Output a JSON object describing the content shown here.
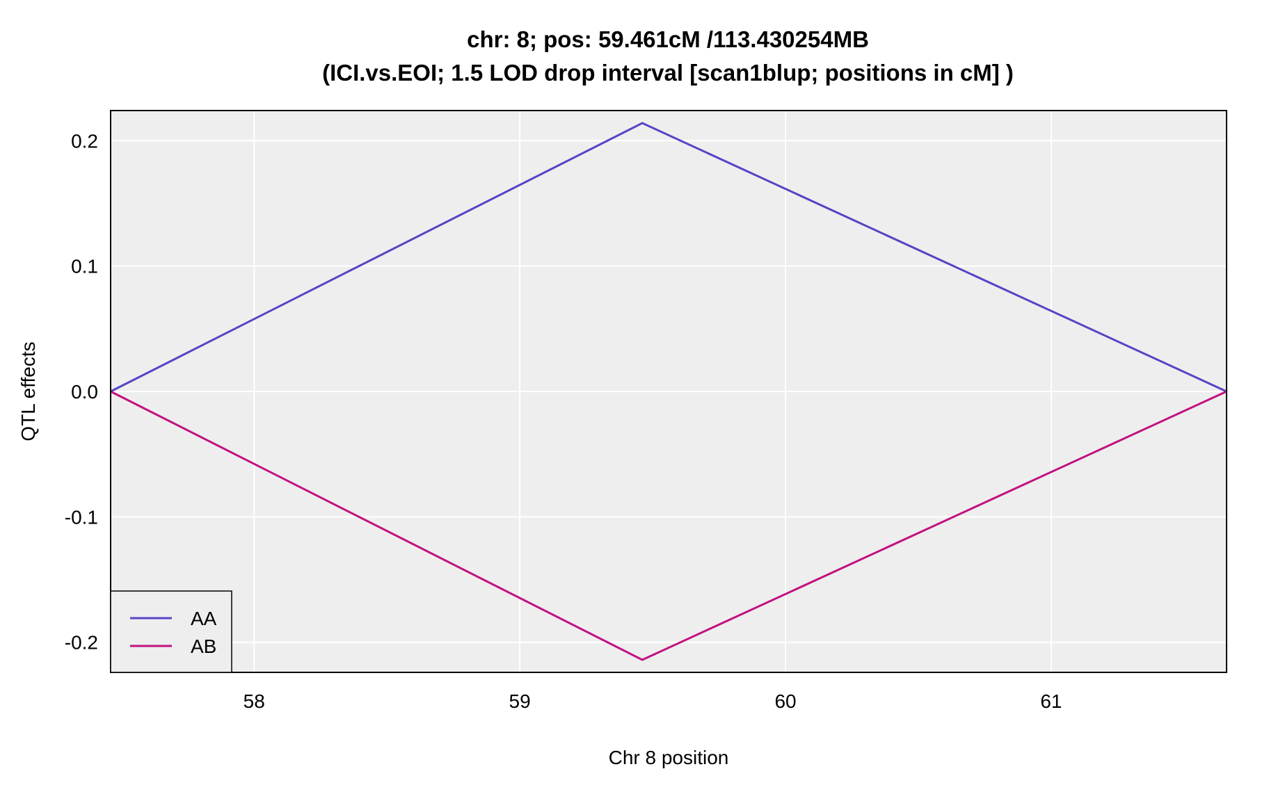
{
  "chart_data": {
    "type": "line",
    "title_line1": "chr: 8; pos: 59.461cM /113.430254MB",
    "title_line2": "(ICI.vs.EOI; 1.5 LOD drop interval [scan1blup; positions in cM] )",
    "xlabel": "Chr 8 position",
    "ylabel": "QTL effects",
    "xlim": [
      57.46,
      61.66
    ],
    "ylim": [
      -0.224,
      0.224
    ],
    "x_ticks": [
      58,
      59,
      60,
      61
    ],
    "x_tick_labels": [
      "58",
      "59",
      "60",
      "61"
    ],
    "y_ticks": [
      0.2,
      0.1,
      0.0,
      -0.1,
      -0.2
    ],
    "y_tick_labels": [
      "0.2",
      "0.1",
      "0.0",
      "-0.1",
      "-0.2"
    ],
    "grid": true,
    "legend_position": "bottom-left",
    "series": [
      {
        "name": "AA",
        "color": "#5544c4",
        "x": [
          57.46,
          59.461,
          61.66
        ],
        "y": [
          0.0,
          0.214,
          0.0
        ]
      },
      {
        "name": "AB",
        "color": "#c2117f",
        "x": [
          57.46,
          59.461,
          61.66
        ],
        "y": [
          0.0,
          -0.214,
          0.0
        ]
      }
    ],
    "colors": {
      "panel_background": "#eeeeee",
      "gridline": "#ffffff",
      "frame": "#000000"
    }
  }
}
